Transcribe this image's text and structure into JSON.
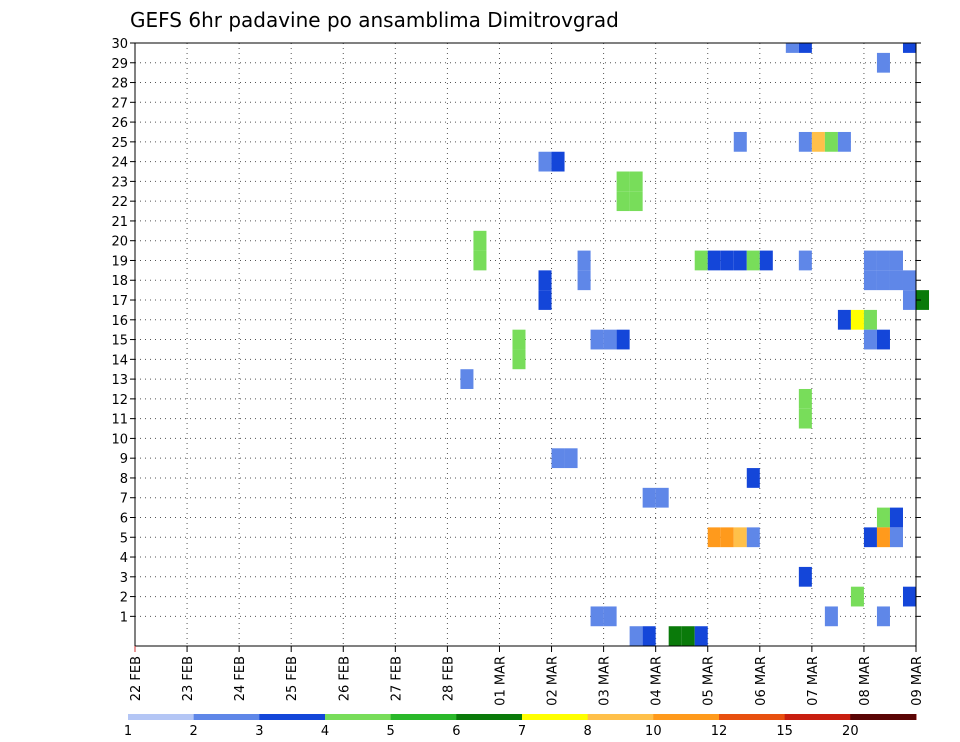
{
  "chart_data": {
    "type": "heatmap",
    "title": "GEFS 6hr padavine po ansamblima Dimitrovgrad",
    "xlabel": "",
    "ylabel": "",
    "x_tick_labels": [
      "22 FEB",
      "23 FEB",
      "24 FEB",
      "25 FEB",
      "26 FEB",
      "27 FEB",
      "28 FEB",
      "01 MAR",
      "02 MAR",
      "03 MAR",
      "04 MAR",
      "05 MAR",
      "06 MAR",
      "07 MAR",
      "08 MAR",
      "09 MAR"
    ],
    "x_range_days": [
      0,
      15
    ],
    "steps_per_day": 4,
    "y_tick_labels": [
      "1",
      "2",
      "3",
      "4",
      "5",
      "6",
      "7",
      "8",
      "9",
      "10",
      "11",
      "12",
      "13",
      "14",
      "15",
      "16",
      "17",
      "18",
      "19",
      "20",
      "21",
      "22",
      "23",
      "24",
      "25",
      "26",
      "27",
      "28",
      "29",
      "30"
    ],
    "y_range": [
      0,
      30
    ],
    "grid": true,
    "legend": {
      "placement": "bottom",
      "levels": [
        "1",
        "2",
        "3",
        "4",
        "5",
        "6",
        "7",
        "8",
        "10",
        "12",
        "15",
        "20"
      ],
      "colors": [
        "#b4c6f5",
        "#5f87e8",
        "#1446d9",
        "#78dd5a",
        "#2ab82a",
        "#0a7a0a",
        "#ffff00",
        "#ffc04a",
        "#ff9a1c",
        "#e8500f",
        "#c81e0f",
        "#960a0a",
        "#5a0505"
      ]
    },
    "colors": {
      "frame": "#000000",
      "grid": "#555555",
      "base_tick": "#d03030"
    },
    "cells": [
      {
        "member": 30,
        "step": 50,
        "level": 1
      },
      {
        "member": 30,
        "step": 51,
        "level": 2
      },
      {
        "member": 30,
        "step": 59,
        "level": 2
      },
      {
        "member": 29,
        "step": 57,
        "level": 1
      },
      {
        "member": 25,
        "step": 46,
        "level": 1
      },
      {
        "member": 25,
        "step": 51,
        "level": 1
      },
      {
        "member": 25,
        "step": 52,
        "level": 7
      },
      {
        "member": 25,
        "step": 53,
        "level": 3
      },
      {
        "member": 25,
        "step": 54,
        "level": 1
      },
      {
        "member": 24,
        "step": 31,
        "level": 1
      },
      {
        "member": 24,
        "step": 32,
        "level": 2
      },
      {
        "member": 23,
        "step": 37,
        "level": 3
      },
      {
        "member": 23,
        "step": 38,
        "level": 3
      },
      {
        "member": 22,
        "step": 37,
        "level": 3
      },
      {
        "member": 22,
        "step": 38,
        "level": 3
      },
      {
        "member": 20,
        "step": 26,
        "level": 3
      },
      {
        "member": 19,
        "step": 26,
        "level": 3
      },
      {
        "member": 19,
        "step": 34,
        "level": 1
      },
      {
        "member": 19,
        "step": 43,
        "level": 3
      },
      {
        "member": 19,
        "step": 44,
        "level": 2
      },
      {
        "member": 19,
        "step": 45,
        "level": 2
      },
      {
        "member": 19,
        "step": 46,
        "level": 2
      },
      {
        "member": 19,
        "step": 47,
        "level": 3
      },
      {
        "member": 19,
        "step": 48,
        "level": 2
      },
      {
        "member": 19,
        "step": 51,
        "level": 1
      },
      {
        "member": 19,
        "step": 56,
        "level": 1
      },
      {
        "member": 19,
        "step": 57,
        "level": 1
      },
      {
        "member": 19,
        "step": 58,
        "level": 1
      },
      {
        "member": 18,
        "step": 31,
        "level": 2
      },
      {
        "member": 18,
        "step": 34,
        "level": 1
      },
      {
        "member": 18,
        "step": 56,
        "level": 1
      },
      {
        "member": 18,
        "step": 57,
        "level": 1
      },
      {
        "member": 18,
        "step": 58,
        "level": 1
      },
      {
        "member": 18,
        "step": 59,
        "level": 1
      },
      {
        "member": 17,
        "step": 31,
        "level": 2
      },
      {
        "member": 17,
        "step": 59,
        "level": 1
      },
      {
        "member": 17,
        "step": 60,
        "level": 5
      },
      {
        "member": 16,
        "step": 54,
        "level": 2
      },
      {
        "member": 16,
        "step": 55,
        "level": 6
      },
      {
        "member": 16,
        "step": 56,
        "level": 3
      },
      {
        "member": 15,
        "step": 29,
        "level": 3
      },
      {
        "member": 15,
        "step": 35,
        "level": 1
      },
      {
        "member": 15,
        "step": 36,
        "level": 1
      },
      {
        "member": 15,
        "step": 37,
        "level": 2
      },
      {
        "member": 15,
        "step": 56,
        "level": 1
      },
      {
        "member": 15,
        "step": 57,
        "level": 2
      },
      {
        "member": 14,
        "step": 29,
        "level": 3
      },
      {
        "member": 13,
        "step": 25,
        "level": 1
      },
      {
        "member": 12,
        "step": 51,
        "level": 3
      },
      {
        "member": 11,
        "step": 51,
        "level": 3
      },
      {
        "member": 9,
        "step": 32,
        "level": 1
      },
      {
        "member": 9,
        "step": 33,
        "level": 1
      },
      {
        "member": 8,
        "step": 47,
        "level": 2
      },
      {
        "member": 7,
        "step": 39,
        "level": 1
      },
      {
        "member": 7,
        "step": 40,
        "level": 1
      },
      {
        "member": 6,
        "step": 57,
        "level": 3
      },
      {
        "member": 6,
        "step": 58,
        "level": 2
      },
      {
        "member": 5,
        "step": 44,
        "level": 8
      },
      {
        "member": 5,
        "step": 45,
        "level": 8
      },
      {
        "member": 5,
        "step": 46,
        "level": 7
      },
      {
        "member": 5,
        "step": 47,
        "level": 1
      },
      {
        "member": 5,
        "step": 56,
        "level": 2
      },
      {
        "member": 5,
        "step": 57,
        "level": 8
      },
      {
        "member": 5,
        "step": 58,
        "level": 1
      },
      {
        "member": 3,
        "step": 51,
        "level": 2
      },
      {
        "member": 2,
        "step": 55,
        "level": 3
      },
      {
        "member": 2,
        "step": 59,
        "level": 2
      },
      {
        "member": 1,
        "step": 35,
        "level": 1
      },
      {
        "member": 1,
        "step": 36,
        "level": 1
      },
      {
        "member": 1,
        "step": 53,
        "level": 1
      },
      {
        "member": 1,
        "step": 57,
        "level": 1
      },
      {
        "member": 0,
        "step": 38,
        "level": 1
      },
      {
        "member": 0,
        "step": 39,
        "level": 2
      },
      {
        "member": 0,
        "step": 41,
        "level": 5
      },
      {
        "member": 0,
        "step": 42,
        "level": 5
      },
      {
        "member": 0,
        "step": 43,
        "level": 2
      }
    ]
  }
}
